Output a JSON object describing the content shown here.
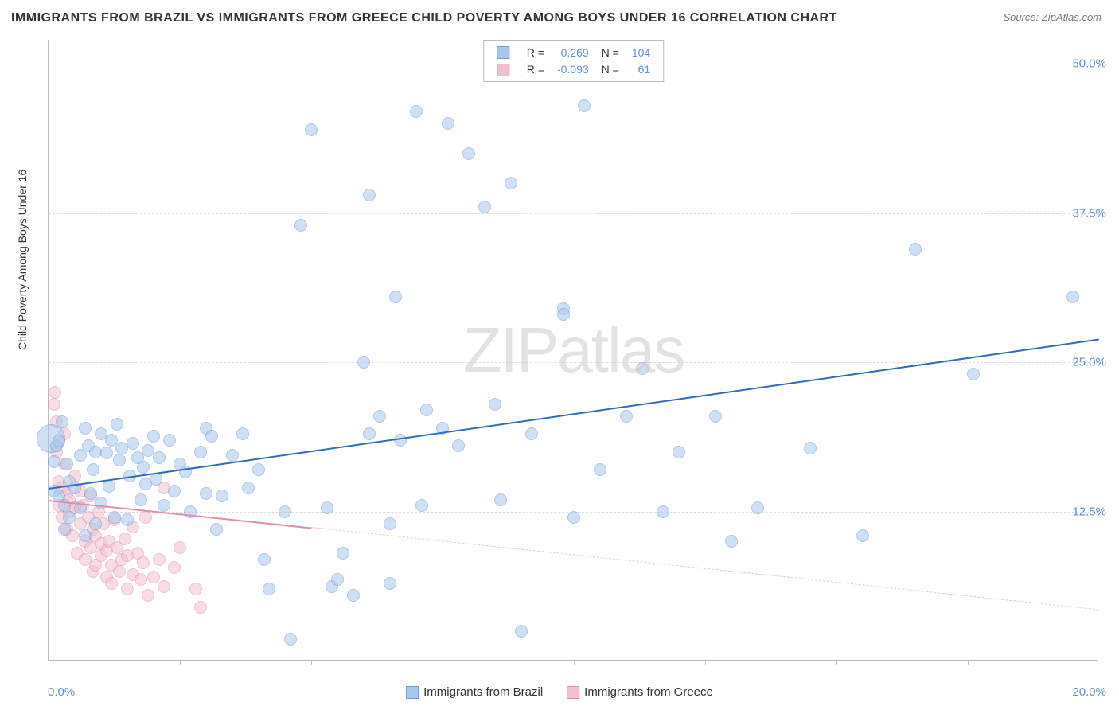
{
  "title": "IMMIGRANTS FROM BRAZIL VS IMMIGRANTS FROM GREECE CHILD POVERTY AMONG BOYS UNDER 16 CORRELATION CHART",
  "source": "Source: ZipAtlas.com",
  "watermark": "ZIPatlas",
  "chart": {
    "type": "scatter",
    "background_color": "#ffffff",
    "grid_color": "#dddddd",
    "axis_color": "#bbbbbb",
    "y_label": "Child Poverty Among Boys Under 16",
    "y_label_fontsize": 14,
    "xlim": [
      0,
      20
    ],
    "ylim": [
      0,
      52
    ],
    "x_ticks": [
      {
        "v": 0,
        "label": "0.0%"
      },
      {
        "v": 20,
        "label": "20.0%"
      }
    ],
    "x_minor_ticks": [
      2.5,
      5,
      7.5,
      10,
      12.5,
      15,
      17.5
    ],
    "y_ticks": [
      {
        "v": 12.5,
        "label": "12.5%"
      },
      {
        "v": 25,
        "label": "25.0%"
      },
      {
        "v": 37.5,
        "label": "37.5%"
      },
      {
        "v": 50,
        "label": "50.0%"
      }
    ],
    "tick_label_color": "#5b8fd6",
    "tick_label_fontsize": 15,
    "marker_radius": 8,
    "marker_stroke_width": 1.2,
    "series": [
      {
        "name": "Immigrants from Brazil",
        "fill_color": "#a9c6ec",
        "stroke_color": "#6b9bd1",
        "fill_opacity": 0.55,
        "R": "0.269",
        "N": "104",
        "trend": {
          "x1": 0,
          "y1": 14.5,
          "x2": 20,
          "y2": 27,
          "color": "#2e6bc0",
          "width": 2.5,
          "dash": "solid"
        },
        "points": [
          [
            0.05,
            18.6,
            18
          ],
          [
            0.1,
            16.7
          ],
          [
            0.1,
            14.2
          ],
          [
            0.15,
            18.0
          ],
          [
            0.2,
            18.4
          ],
          [
            0.2,
            13.8
          ],
          [
            0.25,
            20.0
          ],
          [
            0.3,
            11.0
          ],
          [
            0.3,
            13.0
          ],
          [
            0.35,
            16.5
          ],
          [
            0.4,
            15.0
          ],
          [
            0.4,
            12.0
          ],
          [
            0.5,
            14.5
          ],
          [
            0.6,
            17.2
          ],
          [
            0.6,
            12.8
          ],
          [
            0.7,
            19.5
          ],
          [
            0.7,
            10.5
          ],
          [
            0.75,
            18.0
          ],
          [
            0.8,
            14.0
          ],
          [
            0.85,
            16.0
          ],
          [
            0.9,
            17.5
          ],
          [
            0.9,
            11.5
          ],
          [
            1.0,
            19.0
          ],
          [
            1.0,
            13.2
          ],
          [
            1.1,
            17.4
          ],
          [
            1.15,
            14.6
          ],
          [
            1.2,
            18.5
          ],
          [
            1.25,
            12.0
          ],
          [
            1.3,
            19.8
          ],
          [
            1.35,
            16.8
          ],
          [
            1.4,
            17.8
          ],
          [
            1.5,
            11.8
          ],
          [
            1.55,
            15.5
          ],
          [
            1.6,
            18.2
          ],
          [
            1.7,
            17.0
          ],
          [
            1.75,
            13.5
          ],
          [
            1.8,
            16.2
          ],
          [
            1.85,
            14.8
          ],
          [
            1.9,
            17.6
          ],
          [
            2.0,
            18.8
          ],
          [
            2.05,
            15.2
          ],
          [
            2.1,
            17.0
          ],
          [
            2.2,
            13.0
          ],
          [
            2.3,
            18.5
          ],
          [
            2.4,
            14.2
          ],
          [
            2.5,
            16.5
          ],
          [
            2.6,
            15.8
          ],
          [
            2.7,
            12.5
          ],
          [
            2.9,
            17.5
          ],
          [
            3.0,
            19.5
          ],
          [
            3.0,
            14.0
          ],
          [
            3.1,
            18.8
          ],
          [
            3.2,
            11.0
          ],
          [
            3.3,
            13.8
          ],
          [
            3.5,
            17.2
          ],
          [
            3.7,
            19.0
          ],
          [
            3.8,
            14.5
          ],
          [
            4.0,
            16.0
          ],
          [
            4.1,
            8.5
          ],
          [
            4.2,
            6.0
          ],
          [
            4.5,
            12.5
          ],
          [
            4.6,
            1.8
          ],
          [
            4.8,
            36.5
          ],
          [
            5.0,
            44.5
          ],
          [
            5.3,
            12.8
          ],
          [
            5.4,
            6.2
          ],
          [
            5.5,
            6.8
          ],
          [
            5.6,
            9.0
          ],
          [
            5.8,
            5.5
          ],
          [
            6.0,
            25.0
          ],
          [
            6.1,
            19.0
          ],
          [
            6.1,
            39.0
          ],
          [
            6.3,
            20.5
          ],
          [
            6.5,
            11.5
          ],
          [
            6.5,
            6.5
          ],
          [
            6.6,
            30.5
          ],
          [
            6.7,
            18.5
          ],
          [
            7.0,
            46.0
          ],
          [
            7.1,
            13.0
          ],
          [
            7.2,
            21.0
          ],
          [
            7.5,
            19.5
          ],
          [
            7.6,
            45.0
          ],
          [
            7.8,
            18.0
          ],
          [
            8.0,
            42.5
          ],
          [
            8.3,
            38.0
          ],
          [
            8.5,
            21.5
          ],
          [
            8.6,
            13.5
          ],
          [
            8.8,
            40.0
          ],
          [
            9.0,
            2.5
          ],
          [
            9.2,
            19.0
          ],
          [
            9.8,
            29.5
          ],
          [
            9.8,
            29.0
          ],
          [
            10.0,
            12.0
          ],
          [
            10.2,
            46.5
          ],
          [
            10.5,
            16.0
          ],
          [
            11.0,
            20.5
          ],
          [
            11.3,
            24.5
          ],
          [
            11.7,
            12.5
          ],
          [
            12.0,
            17.5
          ],
          [
            12.7,
            20.5
          ],
          [
            13.0,
            10.0
          ],
          [
            13.5,
            12.8
          ],
          [
            14.5,
            17.8
          ],
          [
            15.5,
            10.5
          ],
          [
            16.5,
            34.5
          ],
          [
            17.6,
            24.0
          ],
          [
            19.5,
            30.5
          ]
        ]
      },
      {
        "name": "Immigrants from Greece",
        "fill_color": "#f2c0cd",
        "stroke_color": "#e08fa5",
        "fill_opacity": 0.55,
        "R": "-0.093",
        "N": "61",
        "trend_solid": {
          "x1": 0,
          "y1": 13.5,
          "x2": 5,
          "y2": 11.2,
          "color": "#e08fa5",
          "width": 2,
          "dash": "solid"
        },
        "trend_dash": {
          "x1": 5,
          "y1": 11.2,
          "x2": 20,
          "y2": 4.3,
          "color": "#f2c0cd",
          "width": 1,
          "dash": "dashed"
        },
        "points": [
          [
            0.1,
            21.5
          ],
          [
            0.12,
            22.5
          ],
          [
            0.15,
            20.0
          ],
          [
            0.15,
            17.5
          ],
          [
            0.2,
            15.0
          ],
          [
            0.2,
            13.0
          ],
          [
            0.25,
            14.5
          ],
          [
            0.25,
            12.0
          ],
          [
            0.3,
            19.0
          ],
          [
            0.3,
            16.5
          ],
          [
            0.35,
            14.0
          ],
          [
            0.35,
            11.0
          ],
          [
            0.4,
            13.5
          ],
          [
            0.4,
            12.5
          ],
          [
            0.45,
            10.5
          ],
          [
            0.5,
            15.5
          ],
          [
            0.5,
            12.8
          ],
          [
            0.55,
            9.0
          ],
          [
            0.6,
            14.2
          ],
          [
            0.6,
            11.5
          ],
          [
            0.65,
            13.0
          ],
          [
            0.7,
            10.0
          ],
          [
            0.7,
            8.5
          ],
          [
            0.75,
            12.0
          ],
          [
            0.8,
            13.8
          ],
          [
            0.8,
            9.5
          ],
          [
            0.85,
            11.0
          ],
          [
            0.85,
            7.5
          ],
          [
            0.9,
            10.5
          ],
          [
            0.9,
            8.0
          ],
          [
            0.95,
            12.5
          ],
          [
            1.0,
            9.8
          ],
          [
            1.0,
            8.8
          ],
          [
            1.05,
            11.5
          ],
          [
            1.1,
            7.0
          ],
          [
            1.1,
            9.2
          ],
          [
            1.15,
            10.0
          ],
          [
            1.2,
            8.0
          ],
          [
            1.2,
            6.5
          ],
          [
            1.25,
            11.8
          ],
          [
            1.3,
            9.5
          ],
          [
            1.35,
            7.5
          ],
          [
            1.4,
            8.5
          ],
          [
            1.45,
            10.2
          ],
          [
            1.5,
            6.0
          ],
          [
            1.5,
            8.8
          ],
          [
            1.6,
            11.2
          ],
          [
            1.6,
            7.2
          ],
          [
            1.7,
            9.0
          ],
          [
            1.75,
            6.8
          ],
          [
            1.8,
            8.2
          ],
          [
            1.85,
            12.0
          ],
          [
            1.9,
            5.5
          ],
          [
            2.0,
            7.0
          ],
          [
            2.1,
            8.5
          ],
          [
            2.2,
            6.2
          ],
          [
            2.2,
            14.5
          ],
          [
            2.4,
            7.8
          ],
          [
            2.5,
            9.5
          ],
          [
            2.8,
            6.0
          ],
          [
            2.9,
            4.5
          ]
        ]
      }
    ],
    "legend_stats": {
      "label_color": "#333333",
      "value_color": "#5b8fd6"
    },
    "legend_bottom_fontsize": 15
  }
}
